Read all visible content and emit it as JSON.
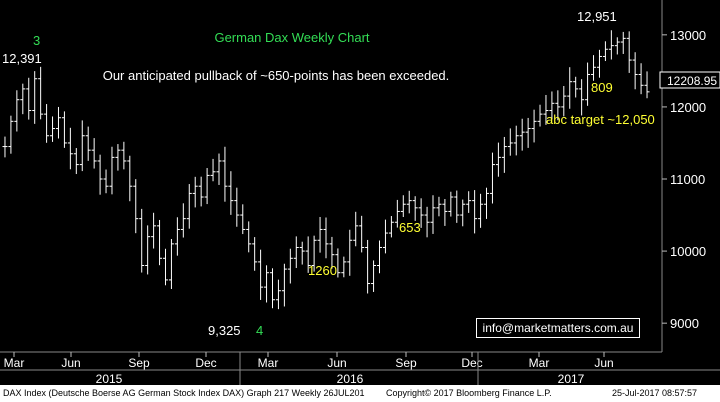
{
  "chart_data": {
    "type": "candlestick-bar",
    "title": "German Dax Weekly Chart",
    "subtitle": "Our anticipated pullback of ~650-points has been exceeded.",
    "ylim": [
      8600,
      13400
    ],
    "yticks": [
      {
        "value": 9000,
        "label": "9000"
      },
      {
        "value": 10000,
        "label": "10000"
      },
      {
        "value": 11000,
        "label": "11000"
      },
      {
        "value": 12000,
        "label": "12000"
      },
      {
        "value": 13000,
        "label": "13000"
      }
    ],
    "last_price": {
      "value": 12208.95,
      "label": "12208.95"
    },
    "months": [
      "Mar",
      "Jun",
      "Sep",
      "Dec",
      "Mar",
      "Jun",
      "Sep",
      "Dec",
      "Mar",
      "Jun"
    ],
    "years": [
      "2015",
      "2016",
      "2017"
    ],
    "annotations": [
      {
        "text": "3",
        "color": "#33dd55"
      },
      {
        "text": "12,391",
        "color": "#ffffff"
      },
      {
        "text": "9,325",
        "color": "#ffffff"
      },
      {
        "text": "4",
        "color": "#33dd55"
      },
      {
        "text": "1260",
        "color": "#ffff33"
      },
      {
        "text": "653",
        "color": "#ffff33"
      },
      {
        "text": "12,951",
        "color": "#ffffff"
      },
      {
        "text": "809",
        "color": "#ffff33"
      },
      {
        "text": "abc target ~12,050",
        "color": "#ffff33"
      }
    ],
    "weekly_closes": [
      11450,
      11800,
      12100,
      12250,
      11950,
      12391,
      11900,
      11600,
      11700,
      11850,
      11500,
      11350,
      11200,
      11600,
      11400,
      11250,
      11000,
      10900,
      11300,
      11400,
      11250,
      10900,
      10450,
      9800,
      10200,
      10350,
      9900,
      9600,
      10100,
      10300,
      10450,
      10800,
      10900,
      10750,
      11050,
      11100,
      11250,
      10900,
      10700,
      10500,
      10300,
      10100,
      9850,
      9500,
      9700,
      9325,
      9450,
      9750,
      9900,
      10050,
      10000,
      9800,
      10150,
      10300,
      10100,
      9950,
      9700,
      9850,
      10150,
      10350,
      10050,
      9550,
      9800,
      10050,
      10250,
      10400,
      10550,
      10650,
      10700,
      10600,
      10500,
      10400,
      10600,
      10650,
      10550,
      10750,
      10500,
      10650,
      10700,
      10450,
      10650,
      10800,
      11200,
      11300,
      11450,
      11500,
      11600,
      11650,
      11700,
      11800,
      11900,
      11950,
      12050,
      12000,
      12150,
      12350,
      12250,
      12100,
      12450,
      12550,
      12700,
      12800,
      12850,
      12900,
      12951,
      12650,
      12450,
      12300,
      12209
    ]
  },
  "email": "info@marketmatters.com.au",
  "footer": {
    "left": "DAX Index (Deutsche Boerse AG German Stock Index DAX) Graph 217  Weekly 26JUL201",
    "copyright": "Copyright© 2017 Bloomberg Finance L.P.",
    "date": "25-Jul-2017 08:57:57"
  },
  "colors": {
    "background": "#000000",
    "bars": "#ffffff",
    "title": "#33dd55",
    "highlight": "#ffff33"
  }
}
